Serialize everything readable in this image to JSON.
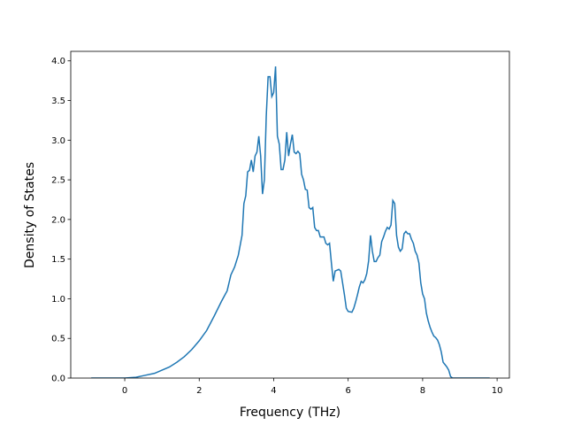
{
  "chart_data": {
    "type": "line",
    "xlabel": "Frequency (THz)",
    "ylabel": "Density of States",
    "color": "#1f77b4",
    "x": [
      -0.9,
      -0.5,
      0,
      0.3,
      0.5,
      0.8,
      1.0,
      1.2,
      1.4,
      1.6,
      1.8,
      2.0,
      2.2,
      2.4,
      2.6,
      2.75,
      2.85,
      2.95,
      3.05,
      3.15,
      3.2,
      3.25,
      3.3,
      3.35,
      3.4,
      3.45,
      3.5,
      3.55,
      3.6,
      3.65,
      3.7,
      3.75,
      3.8,
      3.85,
      3.9,
      3.95,
      4.0,
      4.05,
      4.1,
      4.15,
      4.2,
      4.25,
      4.3,
      4.35,
      4.4,
      4.45,
      4.5,
      4.55,
      4.6,
      4.65,
      4.7,
      4.75,
      4.8,
      4.85,
      4.9,
      4.95,
      5.0,
      5.05,
      5.1,
      5.15,
      5.2,
      5.25,
      5.3,
      5.35,
      5.4,
      5.45,
      5.5,
      5.55,
      5.6,
      5.65,
      5.75,
      5.8,
      5.85,
      5.9,
      5.95,
      6.0,
      6.1,
      6.15,
      6.2,
      6.25,
      6.3,
      6.35,
      6.4,
      6.45,
      6.5,
      6.55,
      6.6,
      6.65,
      6.7,
      6.75,
      6.8,
      6.85,
      6.9,
      6.95,
      7.0,
      7.05,
      7.1,
      7.15,
      7.2,
      7.25,
      7.3,
      7.35,
      7.4,
      7.45,
      7.5,
      7.55,
      7.6,
      7.65,
      7.7,
      7.75,
      7.8,
      7.85,
      7.9,
      7.95,
      8.0,
      8.05,
      8.1,
      8.15,
      8.2,
      8.25,
      8.3,
      8.35,
      8.4,
      8.45,
      8.5,
      8.55,
      8.6,
      8.65,
      8.7,
      8.75,
      8.8,
      9.0,
      9.8
    ],
    "values": [
      0,
      0,
      0,
      0.01,
      0.03,
      0.06,
      0.1,
      0.14,
      0.2,
      0.27,
      0.36,
      0.47,
      0.6,
      0.78,
      0.97,
      1.1,
      1.3,
      1.4,
      1.55,
      1.8,
      2.2,
      2.3,
      2.6,
      2.62,
      2.75,
      2.6,
      2.8,
      2.85,
      3.05,
      2.8,
      2.32,
      2.5,
      3.3,
      3.8,
      3.8,
      3.55,
      3.6,
      3.93,
      3.05,
      2.95,
      2.63,
      2.63,
      2.75,
      3.1,
      2.8,
      2.95,
      3.07,
      2.85,
      2.83,
      2.86,
      2.83,
      2.57,
      2.5,
      2.38,
      2.37,
      2.15,
      2.13,
      2.15,
      1.9,
      1.86,
      1.86,
      1.78,
      1.78,
      1.78,
      1.7,
      1.68,
      1.7,
      1.45,
      1.22,
      1.35,
      1.37,
      1.35,
      1.2,
      1.05,
      0.88,
      0.84,
      0.83,
      0.88,
      0.96,
      1.05,
      1.15,
      1.22,
      1.2,
      1.24,
      1.32,
      1.48,
      1.8,
      1.6,
      1.47,
      1.47,
      1.52,
      1.55,
      1.72,
      1.78,
      1.85,
      1.9,
      1.88,
      1.93,
      2.24,
      2.2,
      1.8,
      1.65,
      1.6,
      1.63,
      1.82,
      1.85,
      1.82,
      1.82,
      1.75,
      1.7,
      1.6,
      1.55,
      1.45,
      1.2,
      1.06,
      1.0,
      0.82,
      0.72,
      0.64,
      0.58,
      0.53,
      0.51,
      0.48,
      0.42,
      0.33,
      0.2,
      0.17,
      0.14,
      0.1,
      0.02,
      0,
      0,
      0
    ],
    "xlim": [
      -1.45,
      10.33
    ],
    "xticks": [
      0,
      2,
      4,
      6,
      8,
      10
    ],
    "ylim": [
      0,
      4.12
    ],
    "yticks": [
      {
        "value": 0,
        "label": "0.0"
      },
      {
        "value": 0.5,
        "label": "0.5"
      },
      {
        "value": 1,
        "label": "1.0"
      },
      {
        "value": 1.5,
        "label": "1.5"
      },
      {
        "value": 2,
        "label": "2.0"
      },
      {
        "value": 2.5,
        "label": "2.5"
      },
      {
        "value": 3,
        "label": "3.0"
      },
      {
        "value": 3.5,
        "label": "3.5"
      },
      {
        "value": 4,
        "label": "4.0"
      }
    ]
  }
}
